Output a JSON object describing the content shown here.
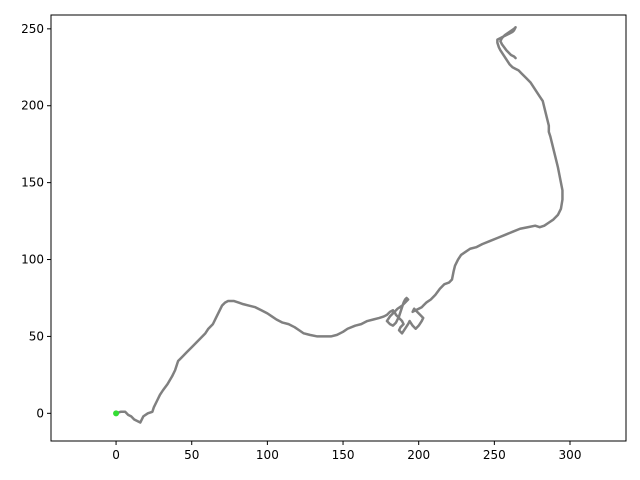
{
  "chart_data": {
    "type": "line",
    "title": "",
    "xlabel": "",
    "ylabel": "",
    "xlim": [
      -43,
      337
    ],
    "ylim": [
      -18,
      259
    ],
    "grid": false,
    "legend": null,
    "x_ticks": [
      0,
      50,
      100,
      150,
      200,
      250,
      300
    ],
    "y_ticks": [
      0,
      50,
      100,
      150,
      200,
      250
    ],
    "x_tick_labels": [
      "0",
      "50",
      "100",
      "150",
      "200",
      "250",
      "300"
    ],
    "y_tick_labels": [
      "0",
      "50",
      "100",
      "150",
      "200",
      "250"
    ],
    "colors": {
      "path": "#808080",
      "start_marker": "#33dd33",
      "axes": "#000000"
    },
    "start_point": {
      "x": 0,
      "y": 0
    },
    "series": [
      {
        "x": [
          0,
          3,
          6,
          8,
          10,
          12,
          14,
          16,
          18,
          21,
          24,
          25,
          27,
          29,
          31,
          34,
          37,
          39,
          40,
          41,
          43,
          45,
          47,
          50,
          53,
          56,
          59,
          61,
          64,
          66,
          68,
          70,
          72,
          74,
          76,
          78,
          81,
          84,
          88,
          92,
          96,
          100,
          103,
          106,
          110,
          114,
          118,
          121,
          124,
          128,
          133,
          138,
          142,
          146,
          150,
          153,
          158,
          162,
          166,
          170,
          174,
          177,
          179,
          181,
          183,
          183,
          181,
          179,
          181,
          183,
          185,
          186,
          187,
          188,
          189,
          190,
          191,
          192,
          193,
          191,
          189,
          186,
          184,
          185,
          187,
          189,
          190,
          188,
          187,
          189,
          191,
          193,
          194,
          196,
          198,
          200,
          202,
          203,
          201,
          199,
          198,
          197,
          196,
          198,
          200,
          202,
          203,
          205,
          208,
          211,
          214,
          217,
          220,
          222,
          223,
          224,
          226,
          228,
          231,
          234,
          238,
          242,
          247,
          252,
          257,
          262,
          267,
          272,
          277,
          280,
          283,
          286,
          289,
          292,
          294,
          295,
          295,
          294,
          293,
          292,
          291,
          290,
          289,
          288,
          287,
          286,
          286,
          285,
          284,
          283,
          282,
          280,
          278,
          276,
          274,
          271,
          268,
          266,
          264,
          262,
          260,
          258,
          256,
          254,
          253,
          252,
          252,
          254,
          256,
          258,
          260,
          262,
          263,
          264,
          263,
          260,
          257,
          255,
          254,
          255,
          258,
          261,
          263,
          264
        ],
        "y": [
          0,
          1,
          1,
          -1,
          -2,
          -4,
          -5,
          -6,
          -2,
          0,
          1,
          4,
          8,
          12,
          15,
          19,
          24,
          28,
          31,
          34,
          36,
          38,
          40,
          43,
          46,
          49,
          52,
          55,
          58,
          62,
          66,
          70,
          72,
          73,
          73,
          73,
          72,
          71,
          70,
          69,
          67,
          65,
          63,
          61,
          59,
          58,
          56,
          54,
          52,
          51,
          50,
          50,
          50,
          51,
          53,
          55,
          57,
          58,
          60,
          61,
          62,
          63,
          64,
          66,
          67,
          65,
          63,
          60,
          58,
          57,
          59,
          61,
          63,
          66,
          69,
          72,
          74,
          75,
          74,
          72,
          70,
          68,
          66,
          64,
          62,
          60,
          58,
          56,
          54,
          52,
          55,
          58,
          60,
          57,
          55,
          57,
          60,
          62,
          64,
          66,
          67,
          68,
          66,
          67,
          68,
          69,
          70,
          72,
          74,
          77,
          81,
          84,
          85,
          87,
          92,
          96,
          100,
          103,
          105,
          107,
          108,
          110,
          112,
          114,
          116,
          118,
          120,
          121,
          122,
          121,
          122,
          124,
          126,
          129,
          133,
          139,
          145,
          150,
          155,
          160,
          164,
          168,
          172,
          176,
          180,
          183,
          187,
          191,
          195,
          199,
          203,
          206,
          209,
          212,
          215,
          218,
          221,
          223,
          224,
          225,
          227,
          230,
          233,
          236,
          238,
          241,
          243,
          244,
          245,
          246,
          247,
          248,
          249,
          251,
          250,
          248,
          246,
          244,
          242,
          240,
          236,
          233,
          232,
          231
        ]
      }
    ]
  }
}
